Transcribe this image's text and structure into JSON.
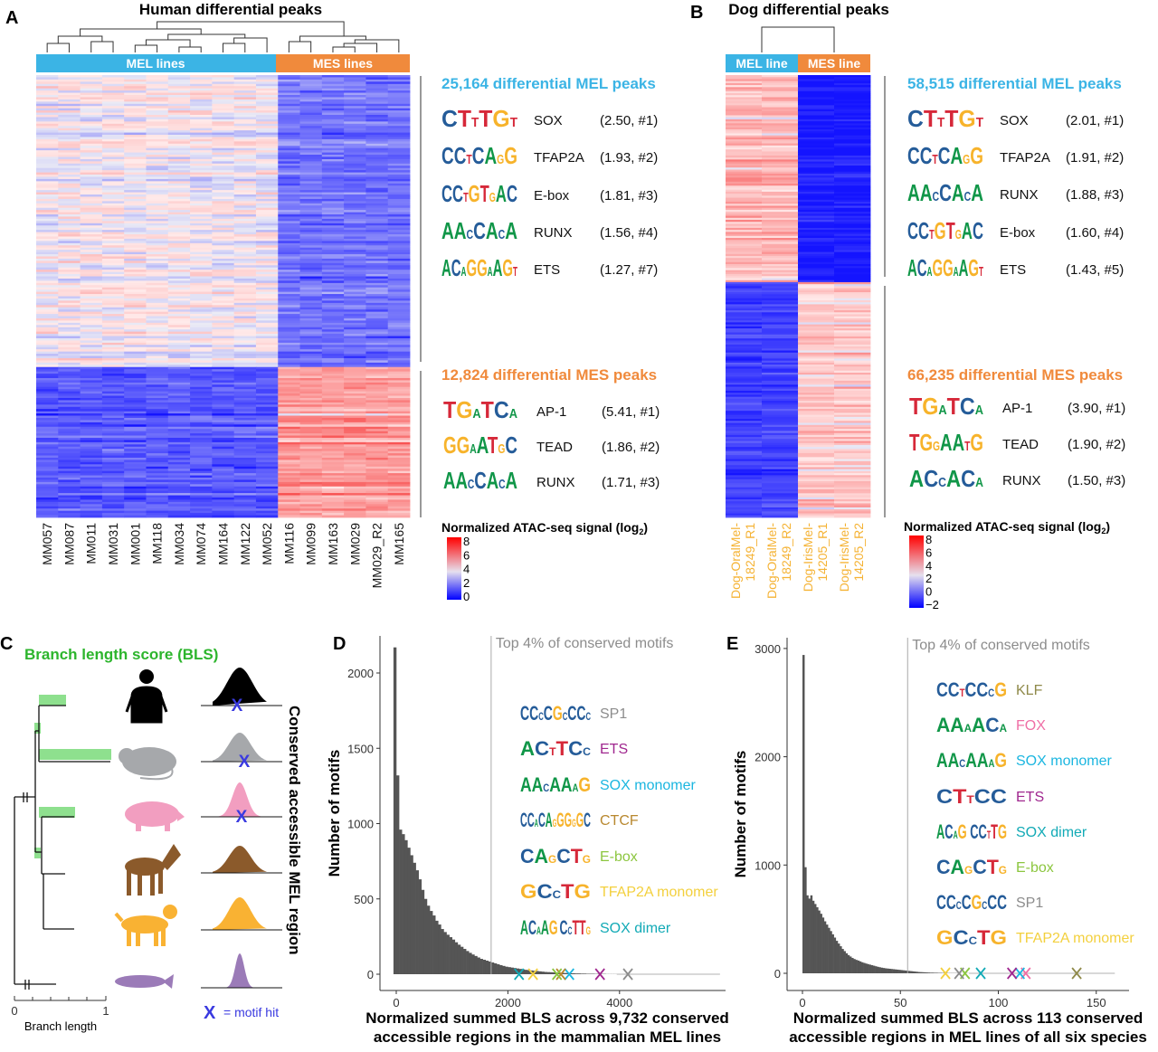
{
  "colors": {
    "mel": "#3bb4e5",
    "mes": "#f08a3c",
    "dog_label": "#f5b335",
    "bls": "#2db52d",
    "hist": "#555555",
    "gray_text": "#8c8c8c",
    "A": "#109648",
    "C": "#255c99",
    "G": "#f7b32b",
    "T": "#d62839"
  },
  "panelA": {
    "label": "A",
    "title": "Human differential peaks",
    "mel_bar": "MEL lines",
    "mes_bar": "MES lines",
    "columns": [
      "MM057",
      "MM087",
      "MM011",
      "MM031",
      "MM001",
      "MM118",
      "MM034",
      "MM074",
      "MM164",
      "MM122",
      "MM052",
      "MM116",
      "MM099",
      "MM163",
      "MM029",
      "MM029_R2",
      "MM165"
    ],
    "mel_title": "25,164 differential MEL peaks",
    "mel_motifs": [
      {
        "logo": "CTTTGT",
        "name": "SOX",
        "val": "(2.50, #1)"
      },
      {
        "logo": "CCTCAGG",
        "name": "TFAP2A",
        "val": "(1.93, #2)"
      },
      {
        "logo": "CCTGTGAC",
        "name": "E-box",
        "val": "(1.81, #3)"
      },
      {
        "logo": "AACCACA",
        "name": "RUNX",
        "val": "(1.56, #4)"
      },
      {
        "logo": "ACAGGAAGT",
        "name": "ETS",
        "val": "(1.27, #7)"
      }
    ],
    "mes_title": "12,824 differential MES peaks",
    "mes_motifs": [
      {
        "logo": "TGATCA",
        "name": "AP-1",
        "val": "(5.41, #1)"
      },
      {
        "logo": "GGAATGC",
        "name": "TEAD",
        "val": "(1.86, #2)"
      },
      {
        "logo": "AACCACA",
        "name": "RUNX",
        "val": "(1.71, #3)"
      }
    ],
    "legend_title": "Normalized ATAC-seq signal (log",
    "legend_sub": "2",
    "legend_close": ")",
    "legend_ticks": [
      "8",
      "6",
      "4",
      "2",
      "0"
    ]
  },
  "panelB": {
    "label": "B",
    "title": "Dog differential peaks",
    "mel_bar": "MEL line",
    "mes_bar": "MES line",
    "columns": [
      [
        "Dog-OralMel-",
        "18249_R1"
      ],
      [
        "Dog-OralMel-",
        "18249_R2"
      ],
      [
        "Dog-IrisMel-",
        "14205_R1"
      ],
      [
        "Dog-IrisMel-",
        "14205_R2"
      ]
    ],
    "mel_title": "58,515 differential MEL peaks",
    "mel_motifs": [
      {
        "logo": "CTTTGT",
        "name": "SOX",
        "val": "(2.01, #1)"
      },
      {
        "logo": "CCTCAGG",
        "name": "TFAP2A",
        "val": "(1.91, #2)"
      },
      {
        "logo": "AACCACA",
        "name": "RUNX",
        "val": "(1.88, #3)"
      },
      {
        "logo": "CCTGTGAC",
        "name": "E-box",
        "val": "(1.60, #4)"
      },
      {
        "logo": "ACAGGAAGT",
        "name": "ETS",
        "val": "(1.43, #5)"
      }
    ],
    "mes_title": "66,235 differential MES peaks",
    "mes_motifs": [
      {
        "logo": "TGATCA",
        "name": "AP-1",
        "val": "(3.90, #1)"
      },
      {
        "logo": "TGGAATG",
        "name": "TEAD",
        "val": "(1.90, #2)"
      },
      {
        "logo": "ACCACA",
        "name": "RUNX",
        "val": "(1.50, #3)"
      }
    ],
    "legend_title": "Normalized ATAC-seq signal (log",
    "legend_sub": "2",
    "legend_close": ")",
    "legend_ticks": [
      "8",
      "6",
      "4",
      "2",
      "0",
      "−2"
    ]
  },
  "panelC": {
    "label": "C",
    "title": "Branch length score (BLS)",
    "side_label": "Conserved accessible MEL region",
    "species": [
      {
        "name": "human-icon",
        "color": "#000000",
        "hit": true
      },
      {
        "name": "mouse-icon",
        "color": "#a6a8ab",
        "hit": true
      },
      {
        "name": "pig-icon",
        "color": "#f29ec0",
        "hit": true
      },
      {
        "name": "horse-icon",
        "color": "#8b5a2b",
        "hit": false
      },
      {
        "name": "dog-icon",
        "color": "#f9b233",
        "hit": false
      },
      {
        "name": "fish-icon",
        "color": "#9b7bb8",
        "hit": false
      }
    ],
    "axis_ticks": [
      "0",
      "1"
    ],
    "axis_label": "Branch length",
    "hit_x": "X",
    "hit_text": "= motif hit"
  },
  "chart_data": [
    {
      "id": "A",
      "type": "heatmap",
      "title": "Human differential peaks",
      "range": [
        0,
        8
      ],
      "blocks": [
        {
          "rows": "25,164 MEL peaks",
          "cols": "MEL lines",
          "mean": 3.6
        },
        {
          "rows": "25,164 MEL peaks",
          "cols": "MES lines",
          "mean": 1.6
        },
        {
          "rows": "12,824 MES peaks",
          "cols": "MEL lines",
          "mean": 1.2
        },
        {
          "rows": "12,824 MES peaks",
          "cols": "MES lines",
          "mean": 5.3
        }
      ]
    },
    {
      "id": "B",
      "type": "heatmap",
      "title": "Dog differential peaks",
      "range": [
        -2,
        8
      ],
      "blocks": [
        {
          "rows": "58,515 MEL peaks",
          "cols": "MEL line",
          "mean": 4.3
        },
        {
          "rows": "58,515 MEL peaks",
          "cols": "MES line",
          "mean": -1.8
        },
        {
          "rows": "66,235 MES peaks",
          "cols": "MEL line",
          "mean": -1.0
        },
        {
          "rows": "66,235 MES peaks",
          "cols": "MES line",
          "mean": 3.8
        }
      ]
    },
    {
      "id": "D",
      "type": "bar",
      "panel_label": "D",
      "annotation": "Top 4% of conserved motifs",
      "threshold": 1700,
      "xlabel": [
        "Normalized summed BLS across 9,732 conserved",
        "accessible regions in the mammalian MEL lines"
      ],
      "ylabel": "Number of motifs",
      "xlim": [
        -150,
        5800
      ],
      "ylim": [
        -100,
        2250
      ],
      "xticks": [
        0,
        2000,
        4000
      ],
      "yticks": [
        0,
        500,
        1000,
        1500,
        2000
      ],
      "bin_start": -50,
      "bin_width": 50,
      "values": [
        2170,
        1320,
        960,
        930,
        890,
        840,
        790,
        740,
        690,
        630,
        560,
        500,
        455,
        420,
        390,
        355,
        330,
        300,
        280,
        262,
        246,
        230,
        212,
        196,
        182,
        168,
        154,
        142,
        131,
        121,
        111,
        102,
        96,
        90,
        84,
        78,
        72,
        66,
        60,
        55,
        50,
        47,
        44,
        41,
        38,
        35,
        32,
        29,
        27,
        25,
        23,
        21,
        19,
        17,
        15,
        14,
        13,
        12,
        11,
        10,
        9,
        8,
        7,
        6,
        6,
        5,
        5,
        4,
        4,
        3,
        3,
        3,
        2,
        2,
        2,
        2,
        1,
        1,
        1,
        1
      ],
      "motifs": [
        {
          "logo": "CCCCGCCCC",
          "name": "SP1",
          "color": "#8c8c8c",
          "x": 4150
        },
        {
          "logo": "ACTTCC",
          "name": "ETS",
          "color": "#a0278f",
          "x": 3650
        },
        {
          "logo": "AACAAAG",
          "name": "SOX monomer",
          "color": "#1bb6e0",
          "x": 3100
        },
        {
          "logo": "CCACAGGGGGC",
          "name": "CTCF",
          "color": "#b8882f",
          "x": 2950
        },
        {
          "logo": "CAGCTG",
          "name": "E-box",
          "color": "#8cc63f",
          "x": 2880
        },
        {
          "logo": "GCCTG",
          "name": "TFAP2A monomer",
          "color": "#f3d03e",
          "x": 2450
        },
        {
          "logo": "ACAAG  CCTTG",
          "name": "SOX dimer",
          "color": "#12aab6",
          "x": 2200
        }
      ]
    },
    {
      "id": "E",
      "type": "bar",
      "panel_label": "E",
      "annotation": "Top 4% of conserved motifs",
      "threshold": 53.7,
      "xlabel": [
        "Normalized summed BLS across 113 conserved",
        "accessible regions in MEL lines of all six species"
      ],
      "ylabel": "Number of motifs",
      "xlim": [
        -8,
        167
      ],
      "ylim": [
        -150,
        3100
      ],
      "xticks": [
        0,
        50,
        100,
        150
      ],
      "yticks": [
        0,
        1000,
        2000,
        3000
      ],
      "bin_start": 0,
      "bin_width": 1,
      "values": [
        2940,
        980,
        720,
        690,
        720,
        670,
        640,
        610,
        580,
        550,
        515,
        480,
        450,
        420,
        390,
        360,
        330,
        300,
        275,
        250,
        225,
        205,
        185,
        168,
        155,
        142,
        132,
        124,
        118,
        110,
        102,
        96,
        90,
        85,
        80,
        75,
        70,
        65,
        60,
        56,
        52,
        49,
        46,
        44,
        42,
        40,
        38,
        36,
        34,
        32,
        30,
        28,
        26,
        24,
        22,
        20,
        18,
        16,
        14,
        12,
        11,
        10,
        9,
        8,
        7,
        6,
        6,
        5,
        5,
        4,
        4,
        3,
        3,
        3,
        2,
        2,
        2,
        2,
        2,
        1,
        1,
        1,
        1,
        1,
        1
      ],
      "motifs": [
        {
          "logo": "CCTCCCG",
          "name": "KLF",
          "color": "#8f8a4a",
          "x": 140
        },
        {
          "logo": "AAAACA",
          "name": "FOX",
          "color": "#ef6fa6",
          "x": 114
        },
        {
          "logo": "AACAAAG",
          "name": "SOX monomer",
          "color": "#1bb6e0",
          "x": 111
        },
        {
          "logo": "CTTCC",
          "name": "ETS",
          "color": "#a0278f",
          "x": 107
        },
        {
          "logo": "ACAG  CCTTG",
          "name": "SOX dimer",
          "color": "#12aab6",
          "x": 91
        },
        {
          "logo": "CAGCTG",
          "name": "E-box",
          "color": "#8cc63f",
          "x": 83
        },
        {
          "logo": "CCCCGCCC",
          "name": "SP1",
          "color": "#8c8c8c",
          "x": 80
        },
        {
          "logo": "GCCTG",
          "name": "TFAP2A monomer",
          "color": "#f3d03e",
          "x": 73
        }
      ]
    }
  ]
}
